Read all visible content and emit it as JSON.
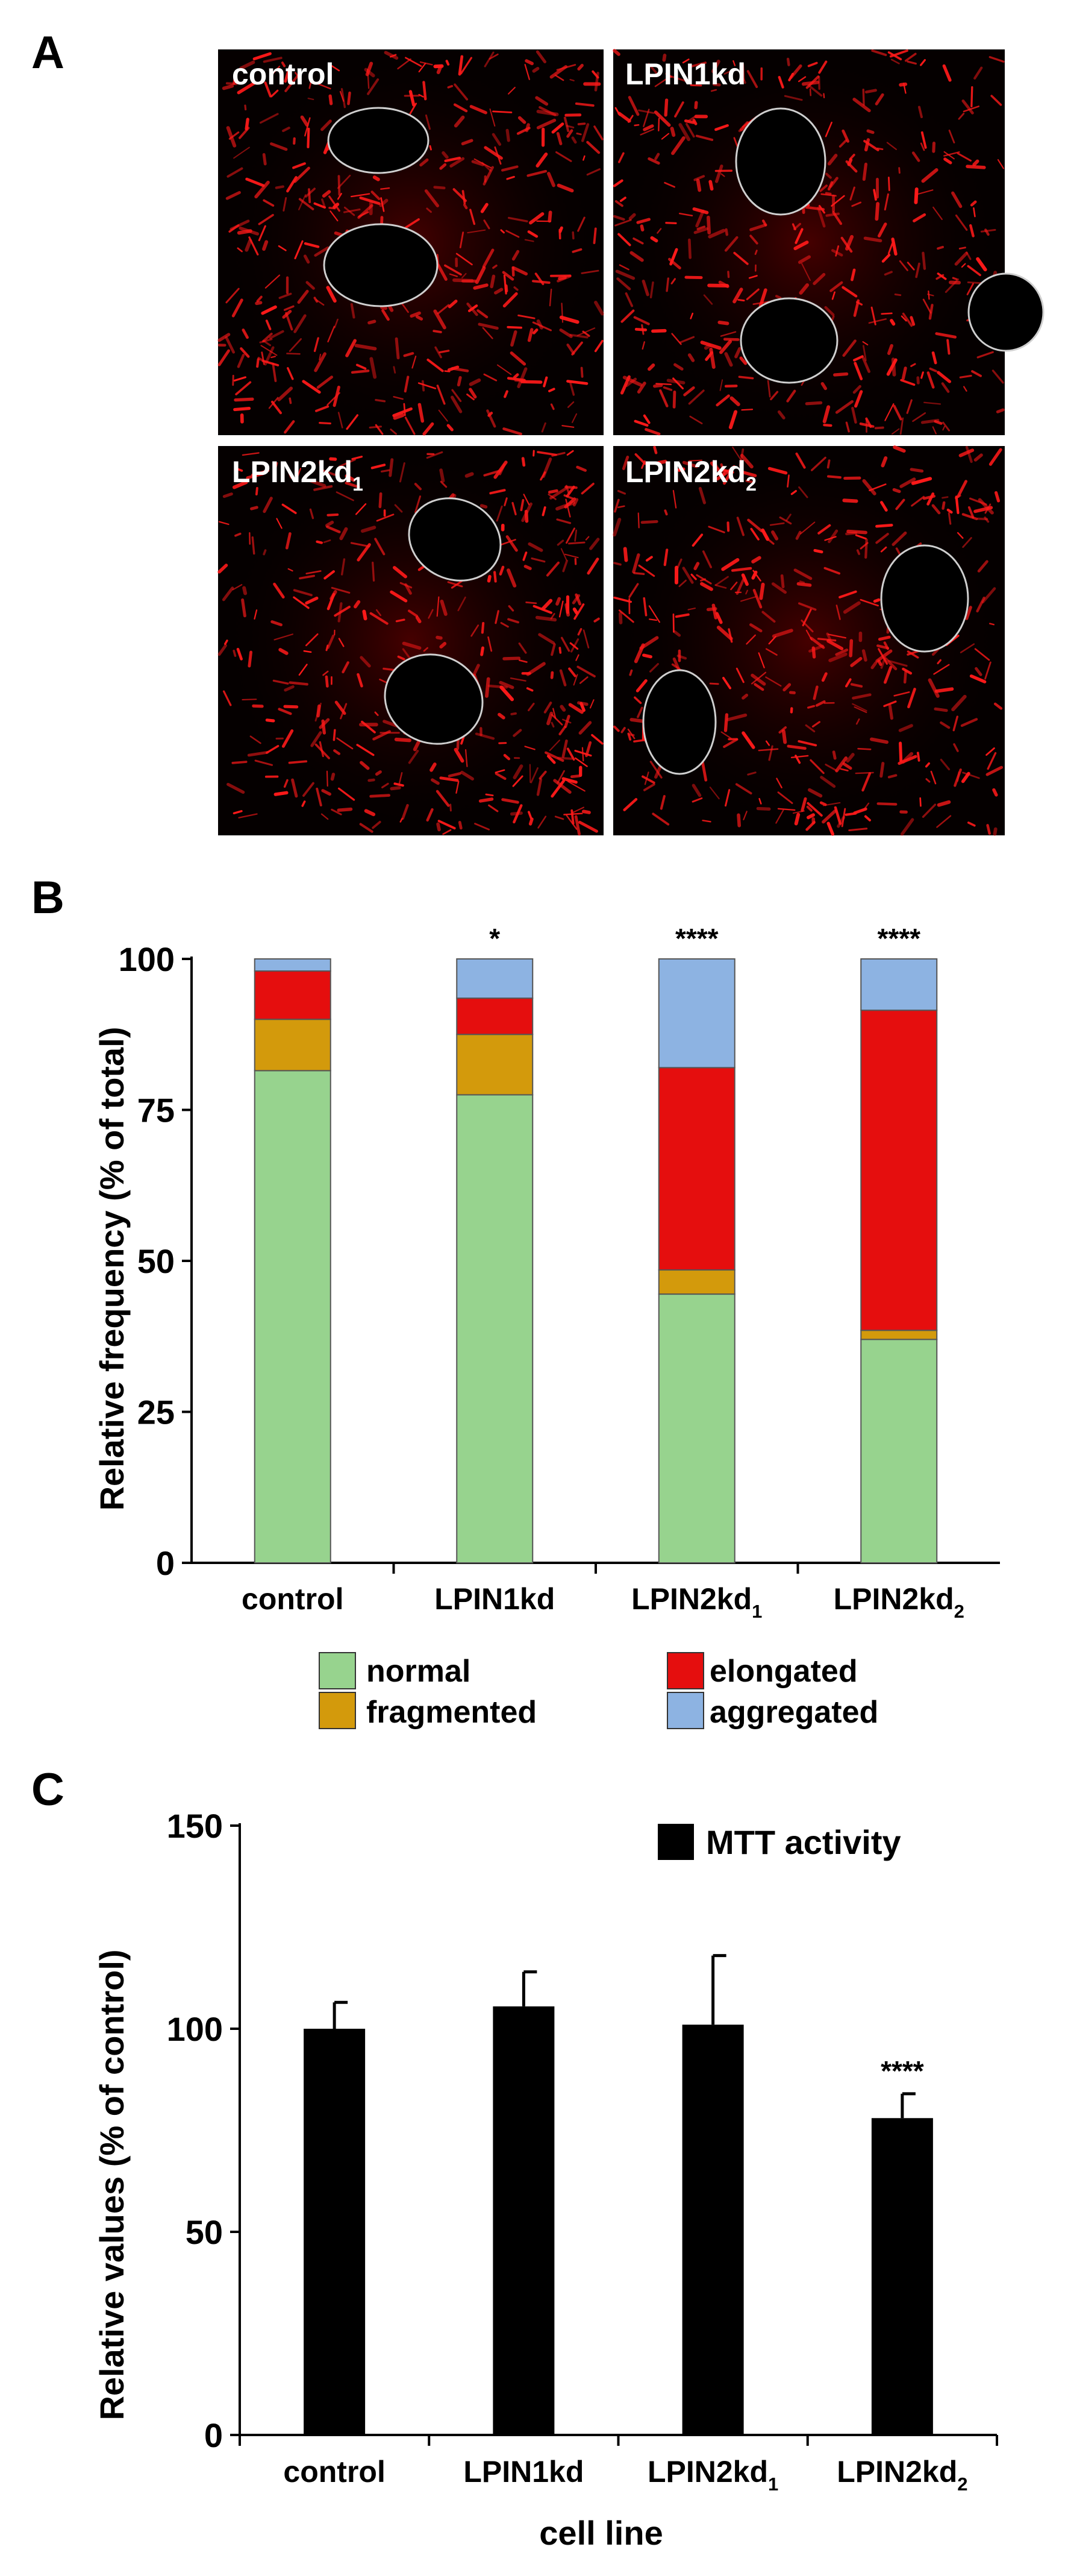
{
  "colors": {
    "normal": "#97d38e",
    "fragmented": "#d39a0c",
    "elongated": "#e50e0e",
    "aggregated": "#8db3e2",
    "mtt_bar": "#000000",
    "micrograph_bg": "#050000",
    "mito_red": "#ff1a1a"
  },
  "panel_a": {
    "letter": "A",
    "images": [
      {
        "id": "control",
        "label": "control",
        "sub": ""
      },
      {
        "id": "lpin1kd",
        "label": "LPIN1kd",
        "sub": ""
      },
      {
        "id": "lpin2kd1",
        "label": "LPIN2kd",
        "sub": "1"
      },
      {
        "id": "lpin2kd2",
        "label": "LPIN2kd",
        "sub": "2"
      }
    ]
  },
  "panel_b": {
    "letter": "B",
    "legend": [
      {
        "key": "normal",
        "label": "normal"
      },
      {
        "key": "elongated",
        "label": "elongated"
      },
      {
        "key": "fragmented",
        "label": "fragmented"
      },
      {
        "key": "aggregated",
        "label": "aggregated"
      }
    ]
  },
  "panel_c": {
    "letter": "C"
  },
  "chart_data": [
    {
      "type": "bar",
      "stacked": true,
      "title": "",
      "ylabel": "Relative frequency (% of total)",
      "xlabel": "",
      "ylim": [
        0,
        100
      ],
      "yticks": [
        "0",
        "25",
        "50",
        "75",
        "100"
      ],
      "categories": [
        {
          "label": "control",
          "sub": ""
        },
        {
          "label": "LPIN1kd",
          "sub": ""
        },
        {
          "label": "LPIN2kd",
          "sub": "1"
        },
        {
          "label": "LPIN2kd",
          "sub": "2"
        }
      ],
      "significance": [
        "",
        "*",
        "****",
        "****"
      ],
      "series": [
        {
          "name": "normal",
          "key": "normal",
          "values": [
            81.5,
            77.5,
            44.5,
            37
          ]
        },
        {
          "name": "fragmented",
          "key": "fragmented",
          "values": [
            8.5,
            10,
            4,
            1.5
          ]
        },
        {
          "name": "elongated",
          "key": "elongated",
          "values": [
            8,
            6,
            33.5,
            53
          ]
        },
        {
          "name": "aggregated",
          "key": "aggregated",
          "values": [
            2,
            6.5,
            18,
            8.5
          ]
        }
      ],
      "legend_position": "bottom"
    },
    {
      "type": "bar",
      "title": "",
      "ylabel": "Relative values (% of control)",
      "xlabel": "cell line",
      "ylim": [
        0,
        150
      ],
      "yticks": [
        "0",
        "50",
        "100",
        "150"
      ],
      "categories": [
        {
          "label": "control",
          "sub": ""
        },
        {
          "label": "LPIN1kd",
          "sub": ""
        },
        {
          "label": "LPIN2kd",
          "sub": "1"
        },
        {
          "label": "LPIN2kd",
          "sub": "2"
        }
      ],
      "series": [
        {
          "name": "MTT activity",
          "values": [
            100,
            105.5,
            101,
            78
          ],
          "errors": [
            6.5,
            8.5,
            17,
            6
          ]
        }
      ],
      "significance": [
        "",
        "",
        "",
        "****"
      ],
      "legend_position": "top-right"
    }
  ]
}
